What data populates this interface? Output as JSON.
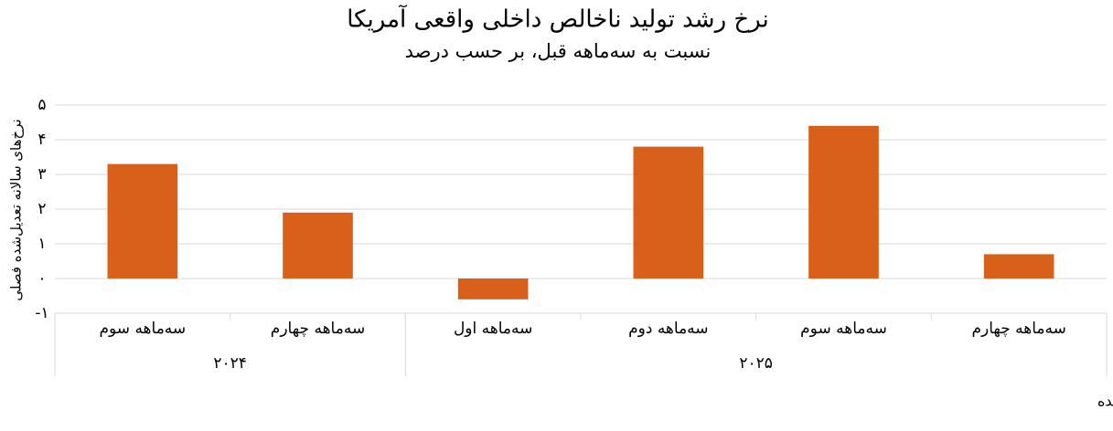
{
  "chart_data": {
    "type": "bar",
    "title": "نرخ رشد تولید ناخالص داخلی واقعی آمریکا",
    "subtitle": "نسبت به سه‌ماهه قبل، بر حسب درصد",
    "y_label": "نرخ‌های سالانه تعدیل‌شده فصلی",
    "source": "منبع: اداره تحلیل اقتصادی ایالات متحده",
    "categories": [
      "سه‌ماهه سوم",
      "سه‌ماهه چهارم",
      "سه‌ماهه اول",
      "سه‌ماهه دوم",
      "سه‌ماهه سوم",
      "سه‌ماهه چهارم"
    ],
    "x_groups": [
      "۲۰۲۴",
      "۲۰۲۴",
      "۲۰۲۵",
      "۲۰۲۵",
      "۲۰۲۵",
      "۲۰۲۵"
    ],
    "values": [
      3.3,
      1.9,
      -0.6,
      3.8,
      4.4,
      0.7
    ],
    "color": "#d9601a",
    "ylim": [
      -1,
      5
    ],
    "yticks": [
      {
        "value": -1,
        "label": "-۱"
      },
      {
        "value": 0,
        "label": "۰"
      },
      {
        "value": 1,
        "label": "۱"
      },
      {
        "value": 2,
        "label": "۲"
      },
      {
        "value": 3,
        "label": "۳"
      },
      {
        "value": 4,
        "label": "۴"
      },
      {
        "value": 5,
        "label": "۵"
      }
    ],
    "grid": true
  }
}
